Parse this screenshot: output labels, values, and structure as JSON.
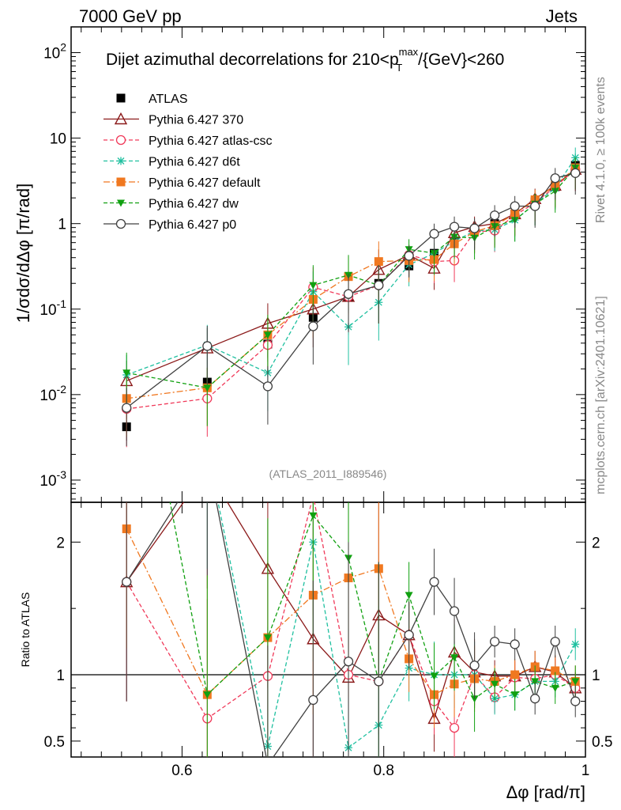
{
  "header": {
    "left": "7000 GeV pp",
    "right": "Jets",
    "side_top": "Rivet 4.1.0, ≥ 100k events",
    "side_bottom": "mcplots.cern.ch [arXiv:2401.10621]",
    "analysis": "(ATLAS_2011_I889546)"
  },
  "chart_data": {
    "type": "line",
    "title": "Dijet azimuthal decorrelations for 210<p_T^max/{GeV}<260",
    "xlabel": "Δφ [rad/π]",
    "ylabel": "1/σdσ/dΔφ [π/rad]",
    "ratio_ylabel": "Ratio to ATLAS",
    "xlim": [
      0.49,
      1.0
    ],
    "ylim": [
      0.00055,
      200
    ],
    "ratio_ylim": [
      0.38,
      2.3
    ],
    "yscale": "log",
    "x_ticks": [
      "0.6",
      "0.8",
      "1"
    ],
    "x": [
      0.545,
      0.625,
      0.685,
      0.73,
      0.765,
      0.795,
      0.825,
      0.85,
      0.87,
      0.89,
      0.91,
      0.93,
      0.95,
      0.97,
      0.99
    ],
    "series": [
      {
        "name": "ATLAS",
        "color": "#000000",
        "marker": "square-filled",
        "values": [
          0.0042,
          0.014,
          0.039,
          0.08,
          0.14,
          0.2,
          0.32,
          0.45,
          0.62,
          0.82,
          1.0,
          1.3,
          1.8,
          2.7,
          4.8
        ]
      },
      {
        "name": "Pythia 6.427 370",
        "color": "#8b1a1a",
        "marker": "triangle-open",
        "dash": "solid",
        "values": [
          0.0145,
          0.035,
          0.068,
          0.1,
          0.14,
          0.29,
          0.43,
          0.3,
          0.78,
          0.92,
          1.0,
          1.3,
          1.95,
          2.8,
          4.3
        ]
      },
      {
        "name": "Pythia 6.427 atlas-csc",
        "color": "#f03a5a",
        "marker": "circle-open",
        "dash": "5,3",
        "values": [
          0.0068,
          0.009,
          0.038,
          0.18,
          0.14,
          0.19,
          0.43,
          0.36,
          0.37,
          0.8,
          0.83,
          1.25,
          1.75,
          2.7,
          4.3
        ]
      },
      {
        "name": "Pythia 6.427 d6t",
        "color": "#20c0a0",
        "marker": "asterisk",
        "dash": "5,3",
        "values": [
          0.017,
          0.038,
          0.018,
          0.16,
          0.062,
          0.12,
          0.33,
          0.45,
          0.62,
          0.82,
          0.85,
          1.1,
          1.7,
          2.6,
          5.9
        ]
      },
      {
        "name": "Pythia 6.427 default",
        "color": "#f07820",
        "marker": "square-filled",
        "dash": "8,3,2,3",
        "values": [
          0.009,
          0.012,
          0.05,
          0.13,
          0.24,
          0.36,
          0.37,
          0.38,
          0.58,
          0.8,
          0.95,
          1.3,
          1.9,
          2.8,
          4.5
        ]
      },
      {
        "name": "Pythia 6.427 dw",
        "color": "#10a010",
        "marker": "triangle-down-filled",
        "dash": "5,3",
        "values": [
          0.018,
          0.012,
          0.05,
          0.19,
          0.25,
          0.19,
          0.5,
          0.45,
          0.7,
          0.68,
          0.93,
          1.1,
          1.7,
          2.4,
          4.5
        ]
      },
      {
        "name": "Pythia 6.427 p0",
        "color": "#404040",
        "marker": "circle-open",
        "dash": "solid",
        "values": [
          0.007,
          0.037,
          0.0125,
          0.063,
          0.15,
          0.19,
          0.42,
          0.76,
          0.92,
          0.88,
          1.25,
          1.6,
          1.6,
          3.4,
          3.9
        ]
      }
    ],
    "ratios": [
      [
        1.7,
        2.55,
        1.8,
        1.27,
        0.98,
        1.45,
        1.3,
        0.67,
        1.17,
        1.02,
        0.99,
        0.99,
        1.06,
        1.02,
        0.9
      ],
      [
        1.7,
        0.67,
        0.99,
        2.35,
        1.0,
        0.95,
        1.3,
        0.8,
        0.6,
        1.0,
        0.83,
        0.98,
        0.97,
        1.0,
        0.9
      ],
      [
        4.0,
        2.7,
        0.46,
        2.0,
        0.45,
        0.62,
        1.05,
        1.0,
        1.0,
        1.0,
        0.82,
        0.85,
        0.95,
        0.95,
        1.23
      ],
      [
        2.1,
        0.85,
        1.28,
        1.6,
        1.73,
        1.8,
        1.12,
        0.85,
        0.93,
        0.97,
        0.95,
        1.0,
        1.06,
        1.03,
        0.95
      ],
      [
        4.0,
        0.85,
        1.28,
        2.2,
        1.88,
        0.95,
        1.6,
        0.99,
        1.13,
        0.82,
        0.93,
        0.85,
        0.95,
        0.9,
        0.95
      ],
      [
        1.7,
        2.65,
        0.32,
        0.81,
        1.1,
        0.95,
        1.3,
        1.7,
        1.48,
        1.07,
        1.25,
        1.23,
        0.82,
        1.25,
        0.8
      ]
    ],
    "y_tick_labels": [
      "10^-3",
      "10^-2",
      "10^-1",
      "1",
      "10",
      "10^2"
    ],
    "ratio_tick_labels": [
      "0.5",
      "1",
      "2"
    ]
  }
}
